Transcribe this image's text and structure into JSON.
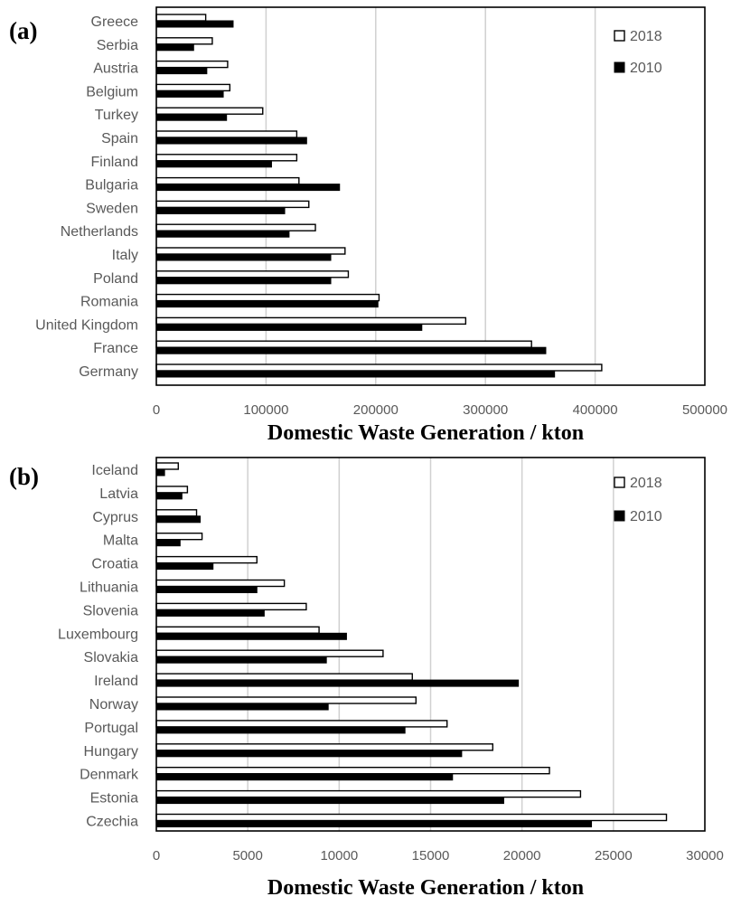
{
  "chart_data": [
    {
      "type": "bar",
      "orientation": "horizontal",
      "panel_label": "(a)",
      "xlabel": "Domestic Waste Generation / kton",
      "xlim": [
        0,
        500000
      ],
      "xticks": [
        0,
        100000,
        200000,
        300000,
        400000,
        500000
      ],
      "xtick_labels": [
        "0",
        "100000",
        "200000",
        "300000",
        "400000",
        "500000"
      ],
      "grid": "vertical",
      "legend_position": "top-right",
      "categories": [
        "Greece",
        "Serbia",
        "Austria",
        "Belgium",
        "Turkey",
        "Spain",
        "Finland",
        "Bulgaria",
        "Sweden",
        "Netherlands",
        "Italy",
        "Poland",
        "Romania",
        "United Kingdom",
        "France",
        "Germany"
      ],
      "series": [
        {
          "name": "2018",
          "color": "#ffffff",
          "values": [
            45000,
            51000,
            65000,
            67000,
            97000,
            128000,
            128000,
            130000,
            139000,
            145000,
            172000,
            175000,
            203000,
            282000,
            342000,
            406000
          ]
        },
        {
          "name": "2010",
          "color": "#000000",
          "values": [
            70000,
            34000,
            46000,
            61000,
            64000,
            137000,
            105000,
            167000,
            117000,
            121000,
            159000,
            159000,
            202000,
            242000,
            355000,
            363000
          ]
        }
      ]
    },
    {
      "type": "bar",
      "orientation": "horizontal",
      "panel_label": "(b)",
      "xlabel": "Domestic Waste Generation / kton",
      "xlim": [
        0,
        30000
      ],
      "xticks": [
        0,
        5000,
        10000,
        15000,
        20000,
        25000,
        30000
      ],
      "xtick_labels": [
        "0",
        "5000",
        "10000",
        "15000",
        "20000",
        "25000",
        "30000"
      ],
      "grid": "vertical",
      "legend_position": "top-right",
      "categories": [
        "Iceland",
        "Latvia",
        "Cyprus",
        "Malta",
        "Croatia",
        "Lithuania",
        "Slovenia",
        "Luxembourg",
        "Slovakia",
        "Ireland",
        "Norway",
        "Portugal",
        "Hungary",
        "Denmark",
        "Estonia",
        "Czechia"
      ],
      "series": [
        {
          "name": "2018",
          "color": "#ffffff",
          "values": [
            1200,
            1700,
            2200,
            2500,
            5500,
            7000,
            8200,
            8900,
            12400,
            14000,
            14200,
            15900,
            18400,
            21500,
            23200,
            27900
          ]
        },
        {
          "name": "2010",
          "color": "#000000",
          "values": [
            450,
            1400,
            2400,
            1300,
            3100,
            5500,
            5900,
            10400,
            9300,
            19800,
            9400,
            13600,
            16700,
            16200,
            19000,
            23800
          ]
        }
      ]
    }
  ]
}
